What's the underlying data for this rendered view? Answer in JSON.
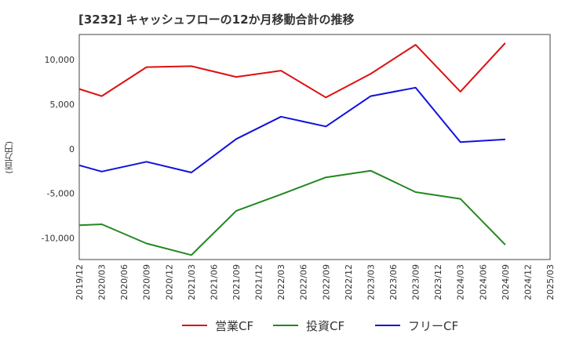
{
  "chart_data": {
    "type": "line",
    "title": "[3232]  キャッシュフローの12か月移動合計の推移",
    "ylabel": "(百万円)",
    "xlabel": "",
    "x": [
      "2019/12",
      "2020/03",
      "2020/06",
      "2020/09",
      "2020/12",
      "2021/03",
      "2021/06",
      "2021/09",
      "2021/12",
      "2022/03",
      "2022/06",
      "2022/09",
      "2022/12",
      "2023/03",
      "2023/06",
      "2023/09",
      "2023/12",
      "2024/03",
      "2024/06",
      "2024/09",
      "2024/12",
      "2025/03"
    ],
    "yticks": [
      -10000,
      -5000,
      0,
      5000,
      10000
    ],
    "ytick_labels": [
      "-10,000",
      "-5,000",
      "0",
      "5,000",
      "10,000"
    ],
    "ylim": [
      -12400,
      12800
    ],
    "grid": true,
    "legend_position": "bottom",
    "series": [
      {
        "name": "営業CF",
        "color": "#dd1111",
        "values": [
          6700,
          5900,
          null,
          9150,
          null,
          9250,
          null,
          8050,
          null,
          8750,
          null,
          5750,
          null,
          8400,
          null,
          11650,
          null,
          6400,
          null,
          11850,
          null,
          null
        ]
      },
      {
        "name": "投資CF",
        "color": "#228822",
        "values": [
          -8550,
          -8450,
          null,
          -10600,
          null,
          -11900,
          null,
          -6950,
          null,
          -5100,
          null,
          -3200,
          null,
          -2450,
          null,
          -4850,
          null,
          -5600,
          null,
          -10750,
          null,
          null
        ]
      },
      {
        "name": "フリーCF",
        "color": "#1111dd",
        "values": [
          -1850,
          -2550,
          null,
          -1450,
          null,
          -2650,
          null,
          1100,
          null,
          3600,
          null,
          2500,
          null,
          5900,
          null,
          6850,
          null,
          750,
          null,
          1050,
          null,
          null
        ]
      }
    ]
  }
}
